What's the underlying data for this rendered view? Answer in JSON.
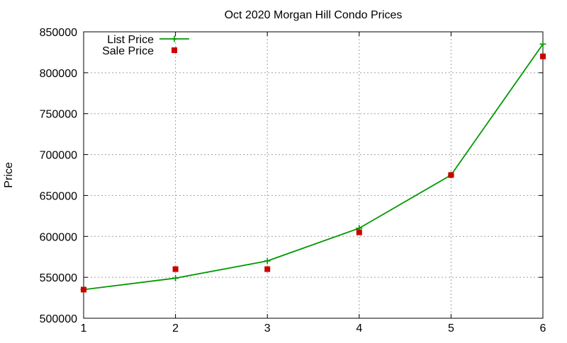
{
  "chart_data": {
    "type": "line",
    "title": "Oct 2020 Morgan Hill Condo Prices",
    "xlabel": "",
    "ylabel": "Price",
    "x": [
      1,
      2,
      3,
      4,
      5,
      6
    ],
    "xlim": [
      1,
      6
    ],
    "ylim": [
      500000,
      850000
    ],
    "x_ticks": [
      "1",
      "2",
      "3",
      "4",
      "5",
      "6"
    ],
    "y_ticks": [
      "500000",
      "550000",
      "600000",
      "650000",
      "700000",
      "750000",
      "800000",
      "850000"
    ],
    "grid": true,
    "legend_position": "top-left",
    "series": [
      {
        "name": "List Price",
        "style": "line-with-plus-markers",
        "color": "#009900",
        "values": [
          535000,
          549000,
          570000,
          610000,
          675000,
          835000
        ]
      },
      {
        "name": "Sale Price",
        "style": "square-markers",
        "color": "#cc0000",
        "values": [
          535000,
          560000,
          560000,
          605000,
          675000,
          820000
        ]
      }
    ]
  }
}
